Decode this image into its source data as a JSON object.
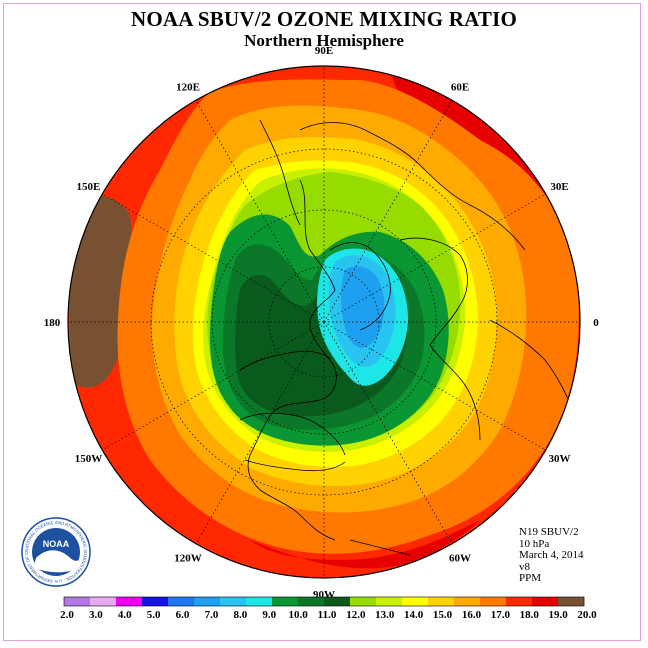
{
  "title": "NOAA SBUV/2 OZONE MIXING RATIO",
  "subtitle": "Northern Hemisphere",
  "longitude_labels": [
    {
      "id": "lon-120e",
      "text": "120E",
      "deg": 120
    },
    {
      "id": "lon-90e",
      "text": "90E",
      "deg": 90
    },
    {
      "id": "lon-60e",
      "text": "60E",
      "deg": 60
    },
    {
      "id": "lon-30e",
      "text": "30E",
      "deg": 30
    },
    {
      "id": "lon-0",
      "text": "0",
      "deg": 0
    },
    {
      "id": "lon-30w",
      "text": "30W",
      "deg": -30
    },
    {
      "id": "lon-60w",
      "text": "60W",
      "deg": -60
    },
    {
      "id": "lon-90w",
      "text": "90W",
      "deg": -90
    },
    {
      "id": "lon-120w",
      "text": "120W",
      "deg": -120
    },
    {
      "id": "lon-150w",
      "text": "150W",
      "deg": -150
    },
    {
      "id": "lon-180",
      "text": "180",
      "deg": 180
    },
    {
      "id": "lon-150e",
      "text": "150E",
      "deg": 150
    }
  ],
  "info": {
    "instrument": "N19 SBUV/2",
    "level": "10 hPa",
    "date": "March 4, 2014",
    "version": "v8",
    "units": "PPM"
  },
  "logo": {
    "text": "NOAA",
    "ring_text": "NATIONAL OCEANIC AND ATMOSPHERIC ADMINISTRATION · U.S. DEPARTMENT OF COMMERCE"
  },
  "colorbar": {
    "ticks": [
      "2.0",
      "3.0",
      "4.0",
      "5.0",
      "6.0",
      "7.0",
      "8.0",
      "9.0",
      "10.0",
      "11.0",
      "12.0",
      "13.0",
      "14.0",
      "15.0",
      "16.0",
      "17.0",
      "18.0",
      "19.0",
      "20.0"
    ],
    "colors": [
      "#b478e6",
      "#e6aaf0",
      "#f000f0",
      "#1414e6",
      "#1e78f0",
      "#1ea0f0",
      "#28c3f0",
      "#1ee6e6",
      "#0a9632",
      "#0a7828",
      "#0a5a1e",
      "#96dc00",
      "#c8f000",
      "#ffff00",
      "#ffd200",
      "#ffaa00",
      "#ff7800",
      "#ff2800",
      "#e60000",
      "#785032"
    ]
  },
  "map_colors": {
    "c10": "#785032",
    "c18": "#ff2800",
    "c17": "#ff7800",
    "c16": "#ffaa00",
    "c15": "#ffd200",
    "c14": "#ffff00",
    "c13": "#c8f000",
    "c12": "#96dc00",
    "c11": "#0a9632",
    "c10b": "#0a5a1e",
    "c9": "#1ee6e6",
    "c8": "#28c3f0",
    "c7": "#1ea0f0"
  }
}
